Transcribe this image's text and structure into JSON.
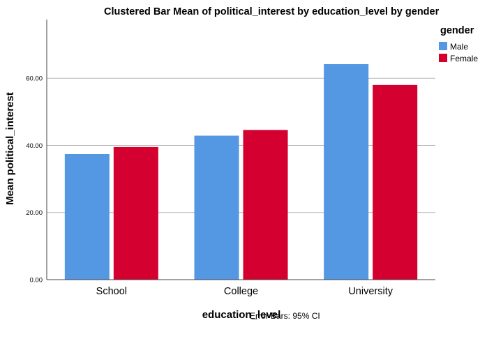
{
  "chart_data": {
    "type": "bar",
    "title": "Clustered Bar Mean of political_interest by education_level by gender",
    "xlabel": "education_level",
    "ylabel": "Mean political_interest",
    "categories": [
      "School",
      "College",
      "University"
    ],
    "series": [
      {
        "name": "Male",
        "values": [
          37.4,
          42.9,
          64.2
        ],
        "color": "#5497e3"
      },
      {
        "name": "Female",
        "values": [
          39.5,
          44.6,
          58.0
        ],
        "color": "#d40030"
      }
    ],
    "ylim": [
      0,
      77.5
    ],
    "yticks": [
      0,
      20,
      40,
      60
    ],
    "ytick_labels": [
      "0.00",
      "20.00",
      "40.00",
      "60.00"
    ],
    "grid": true,
    "legend": {
      "title": "gender",
      "position": "top-right"
    },
    "footnote": "Error Bars: 95% CI"
  }
}
